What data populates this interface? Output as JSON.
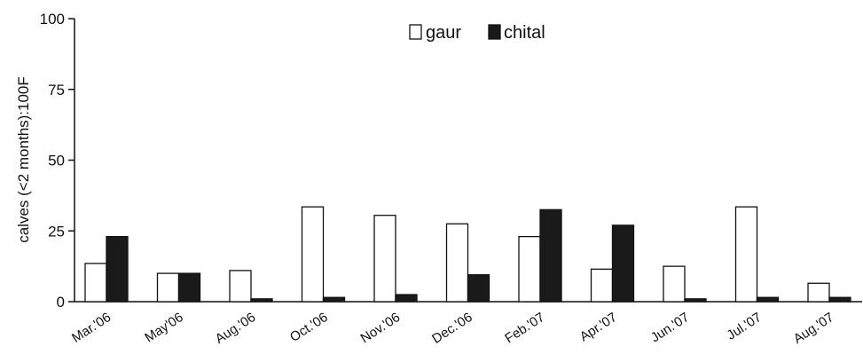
{
  "chart_data": {
    "type": "bar",
    "title": "",
    "xlabel": "",
    "ylabel": "calves (<2 months):100F",
    "ylim": [
      0,
      100
    ],
    "yticks": [
      0,
      25,
      50,
      75,
      100
    ],
    "grid": false,
    "legend_position": "top-center",
    "categories": [
      "Mar.'06",
      "May'06",
      "Aug.'06",
      "Oct.'06",
      "Nov.'06",
      "Dec.'06",
      "Feb.'07",
      "Apr.'07",
      "Jun.'07",
      "Jul.'07",
      "Aug.'07"
    ],
    "series": [
      {
        "name": "gaur",
        "color": "#ffffff",
        "values": [
          13.5,
          10,
          11,
          33.5,
          30.5,
          27.5,
          23,
          11.5,
          12.5,
          33.5,
          6.5
        ]
      },
      {
        "name": "chital",
        "color": "#1a1a1a",
        "values": [
          23,
          10,
          1,
          1.5,
          2.5,
          9.5,
          32.5,
          27,
          1,
          1.5,
          1.5
        ]
      }
    ]
  }
}
